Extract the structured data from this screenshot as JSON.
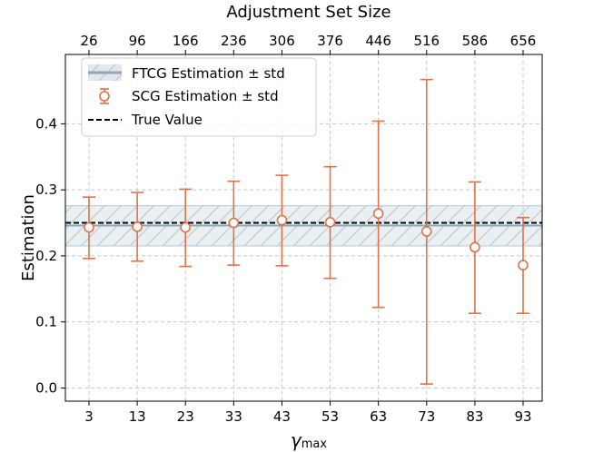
{
  "chart_data": {
    "type": "scatter",
    "top_xlabel": "Adjustment Set Size",
    "ylabel": "Estimation",
    "xlabel_main": "γ",
    "xlabel_sub": "max",
    "x": [
      3,
      13,
      23,
      33,
      43,
      53,
      63,
      73,
      83,
      93
    ],
    "x_tick_labels": [
      "3",
      "13",
      "23",
      "33",
      "43",
      "53",
      "63",
      "73",
      "83",
      "93"
    ],
    "top_tick_labels": [
      "26",
      "96",
      "166",
      "236",
      "306",
      "376",
      "446",
      "516",
      "586",
      "656"
    ],
    "ylim": [
      -0.02,
      0.505
    ],
    "y_ticks": [
      0.0,
      0.1,
      0.2,
      0.3,
      0.4
    ],
    "y_tick_labels": [
      "0.0",
      "0.1",
      "0.2",
      "0.3",
      "0.4"
    ],
    "grid": true,
    "legend_position": "top-left",
    "series": [
      {
        "name": "SCG Estimation ± std",
        "color": "#e07248",
        "values": [
          0.243,
          0.244,
          0.243,
          0.25,
          0.254,
          0.251,
          0.264,
          0.237,
          0.213,
          0.186
        ],
        "lower": [
          0.196,
          0.192,
          0.184,
          0.186,
          0.185,
          0.166,
          0.122,
          0.006,
          0.113,
          0.113
        ],
        "upper": [
          0.289,
          0.296,
          0.301,
          0.313,
          0.322,
          0.335,
          0.404,
          0.467,
          0.312,
          0.258
        ]
      }
    ],
    "ftcg": {
      "name": "FTCG Estimation ± std",
      "color": "#8fa8b8",
      "band_color": "#c3d0da",
      "value": 0.246,
      "lower": 0.215,
      "upper": 0.276
    },
    "true_value": {
      "name": "True Value",
      "value": 0.25
    }
  }
}
